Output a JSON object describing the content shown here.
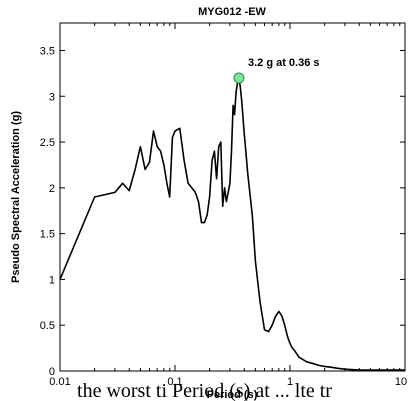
{
  "chart_data": {
    "type": "line",
    "title": "MYG012 -EW",
    "xlabel": "Period (s)",
    "ylabel": "Pseudo Spectral Acceleration (g)",
    "xscale": "log",
    "xlim": [
      0.01,
      10
    ],
    "ylim": [
      0,
      3.8
    ],
    "x_ticks": [
      "0.01",
      "0.1",
      "1",
      "10"
    ],
    "y_ticks": [
      "0",
      "0.5",
      "1",
      "1.5",
      "2",
      "2.5",
      "3",
      "3.5"
    ],
    "grid": false,
    "line_color": "#000000",
    "marker_color": "#7fe39a",
    "peak": {
      "x": 0.36,
      "y": 3.2,
      "label": "3.2 g at 0.36 s"
    },
    "series": [
      {
        "x": [
          0.01,
          0.02,
          0.03,
          0.035,
          0.04,
          0.045,
          0.05,
          0.055,
          0.06,
          0.065,
          0.07,
          0.075,
          0.08,
          0.085,
          0.09,
          0.095,
          0.1,
          0.11,
          0.12,
          0.13,
          0.14,
          0.15,
          0.16,
          0.17,
          0.18,
          0.19,
          0.2,
          0.21,
          0.22,
          0.23,
          0.24,
          0.25,
          0.26,
          0.27,
          0.28,
          0.29,
          0.3,
          0.31,
          0.32,
          0.33,
          0.34,
          0.35,
          0.36,
          0.37,
          0.38,
          0.4,
          0.43,
          0.47,
          0.5,
          0.55,
          0.6,
          0.65,
          0.7,
          0.75,
          0.8,
          0.85,
          0.9,
          0.95,
          1.0,
          1.05,
          1.1,
          1.2,
          1.4,
          1.6,
          1.8,
          2.0,
          2.3,
          2.6,
          3.0,
          4.0,
          5.0,
          7.0,
          10.0
        ],
        "y": [
          1.0,
          1.9,
          1.95,
          2.05,
          1.97,
          2.2,
          2.45,
          2.2,
          2.28,
          2.62,
          2.45,
          2.4,
          2.25,
          2.05,
          1.9,
          2.55,
          2.62,
          2.65,
          2.3,
          2.05,
          2.0,
          1.95,
          1.85,
          1.62,
          1.62,
          1.7,
          1.9,
          2.3,
          2.4,
          2.1,
          2.45,
          2.5,
          1.8,
          2.0,
          1.85,
          1.95,
          2.05,
          2.4,
          2.9,
          2.8,
          3.05,
          3.15,
          3.2,
          3.1,
          2.95,
          2.6,
          2.15,
          1.7,
          1.2,
          0.75,
          0.45,
          0.43,
          0.5,
          0.6,
          0.65,
          0.6,
          0.5,
          0.38,
          0.3,
          0.25,
          0.22,
          0.15,
          0.1,
          0.08,
          0.06,
          0.05,
          0.04,
          0.03,
          0.02,
          0.01,
          0.01,
          0.01,
          0.01
        ]
      }
    ]
  },
  "caption_text": "the   worst  ti   Period (s)  at  ...   lte  tr"
}
